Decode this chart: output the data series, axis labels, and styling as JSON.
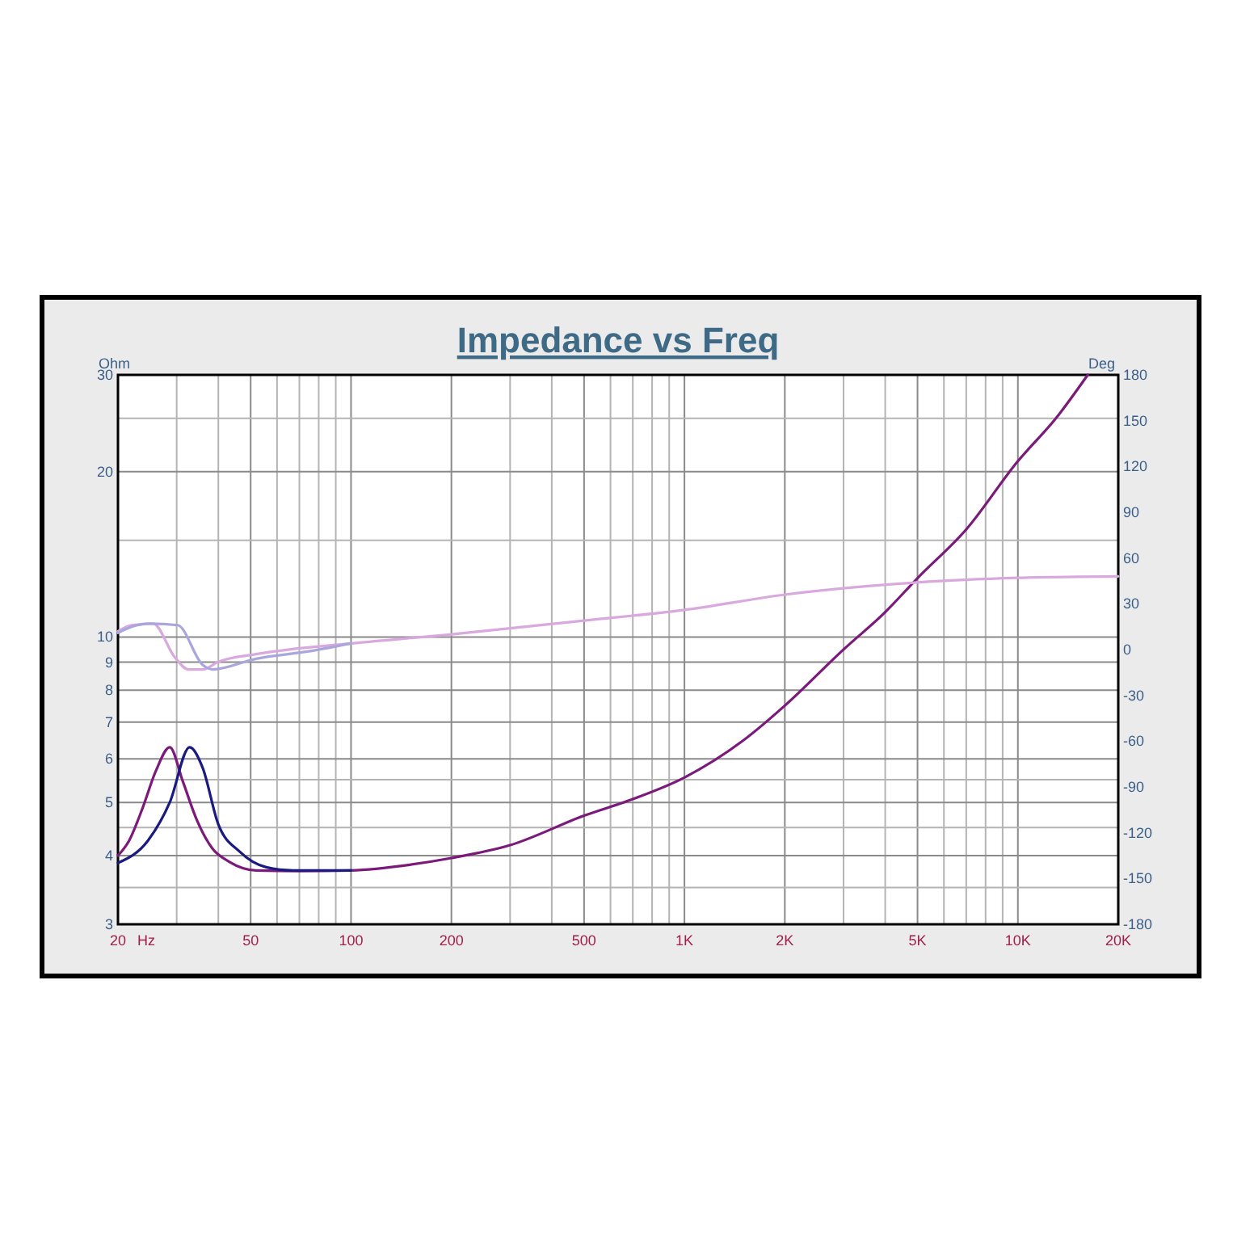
{
  "chart_data": {
    "type": "line",
    "title": "Impedance vs Freq",
    "xlabel": "Hz",
    "ylabel": "Ohm",
    "y2label": "Deg",
    "log": "xy",
    "grid": true,
    "marker": "none",
    "line_style": "solid",
    "xlim": [
      20,
      20000
    ],
    "ylim": [
      3,
      30
    ],
    "y2lim": [
      -180,
      180
    ],
    "xticks": [
      20,
      {
        "value": 30,
        "label": null
      },
      {
        "value": 40,
        "label": null
      },
      50,
      {
        "value": 60,
        "label": null
      },
      {
        "value": 70,
        "label": null
      },
      {
        "value": 80,
        "label": null
      },
      {
        "value": 90,
        "label": null
      },
      100,
      200,
      {
        "value": 300,
        "label": null
      },
      {
        "value": 400,
        "label": null
      },
      500,
      {
        "value": 600,
        "label": null
      },
      {
        "value": 700,
        "label": null
      },
      {
        "value": 800,
        "label": null
      },
      {
        "value": 900,
        "label": null
      },
      {
        "value": 1000,
        "label": "1K"
      },
      {
        "value": 2000,
        "label": "2K"
      },
      {
        "value": 3000,
        "label": null
      },
      {
        "value": 4000,
        "label": null
      },
      {
        "value": 5000,
        "label": "5K"
      },
      {
        "value": 6000,
        "label": null
      },
      {
        "value": 7000,
        "label": null
      },
      {
        "value": 8000,
        "label": null
      },
      {
        "value": 9000,
        "label": null
      },
      {
        "value": 10000,
        "label": "10K"
      },
      {
        "value": 20000,
        "label": "20K"
      }
    ],
    "yticks": [
      3,
      {
        "value": 3.5,
        "label": null
      },
      4,
      {
        "value": 4.5,
        "label": null
      },
      5,
      {
        "value": 5.5,
        "label": null
      },
      6,
      7,
      8,
      9,
      10,
      {
        "value": 15,
        "label": null
      },
      20,
      {
        "value": 25,
        "label": null
      },
      30
    ],
    "y2ticks": [
      -180,
      -150,
      -120,
      -90,
      -60,
      -30,
      0,
      30,
      60,
      90,
      120,
      150,
      180
    ],
    "series": [
      {
        "color": "#7b1a7b",
        "x": [
          20,
          21.6,
          23.7,
          26,
          28.6,
          31.3,
          34.4,
          38.4,
          43.1,
          51.9,
          70,
          100,
          150,
          200,
          300,
          500,
          700,
          1000,
          1500,
          2000,
          3000,
          4000,
          5000,
          7000,
          10000,
          13000,
          16200
        ],
        "values": [
          4.0,
          4.26,
          4.88,
          5.71,
          6.3,
          5.46,
          4.66,
          4.12,
          3.9,
          3.76,
          3.75,
          3.76,
          3.85,
          3.96,
          4.18,
          4.73,
          5.07,
          5.55,
          6.48,
          7.5,
          9.49,
          11.1,
          12.8,
          15.7,
          20.9,
          25,
          30
        ]
      },
      {
        "color": "#1a1a80",
        "x": [
          20,
          24.6,
          28.6,
          32.8,
          35.9,
          40,
          46.3,
          55.7,
          67,
          100
        ],
        "values": [
          3.88,
          4.26,
          5.0,
          6.3,
          5.78,
          4.56,
          4.07,
          3.81,
          3.76,
          3.76
        ]
      },
      {
        "color": "#d9a8de",
        "axis": "y2",
        "x": [
          20,
          22,
          25.5,
          29.6,
          32.5,
          35.9,
          40,
          51.9,
          100,
          200,
          500,
          1000,
          2000,
          5000,
          10000,
          20000
        ],
        "values": [
          12,
          16,
          17,
          -5,
          -13,
          -13,
          -8,
          -3,
          4,
          10,
          19,
          26,
          36,
          44,
          47,
          48
        ]
      },
      {
        "color": "#a9a6dc",
        "axis": "y2",
        "x": [
          20,
          22,
          25,
          30.2,
          35.9,
          38.4,
          51.9,
          75.5,
          100
        ],
        "values": [
          11,
          15,
          17,
          16,
          -10,
          -13,
          -6,
          -1,
          4
        ]
      }
    ]
  }
}
